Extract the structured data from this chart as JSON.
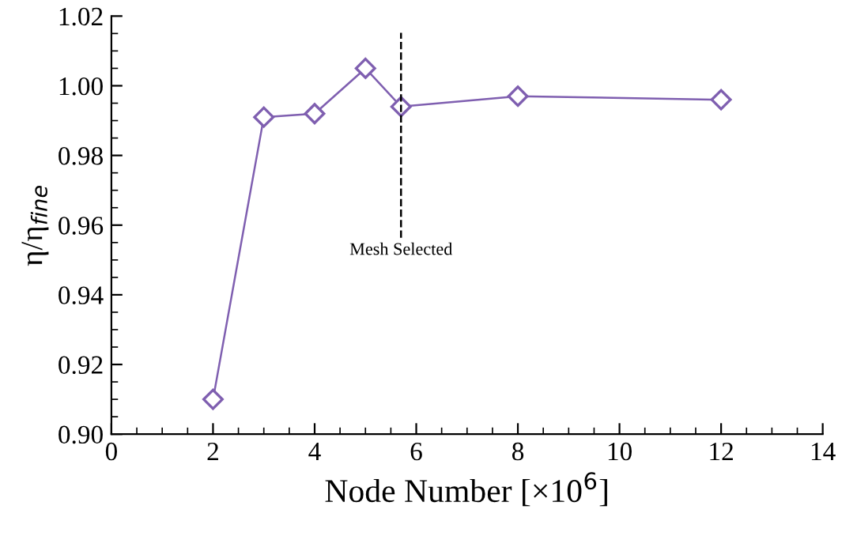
{
  "chart_data": {
    "type": "line",
    "xlabel": "Node Number [×10$^{6}$]",
    "ylabel": "η/η$_{fine}$",
    "x": [
      2,
      3,
      4,
      5,
      5.7,
      8,
      12
    ],
    "series": [
      {
        "color": "#7f5fb0",
        "values": [
          0.91,
          0.991,
          0.992,
          1.005,
          0.994,
          0.997,
          0.996
        ]
      }
    ],
    "marker": "diamond",
    "line_style": "solid",
    "grid": false,
    "legend": false,
    "xlim": [
      0,
      14
    ],
    "xticks": [
      0,
      2,
      4,
      6,
      8,
      10,
      12,
      14
    ],
    "ylim": [
      0.9,
      1.02
    ],
    "yticks": [
      {
        "value": 0.9,
        "label": "0.90"
      },
      {
        "value": 0.92,
        "label": "0.92"
      },
      {
        "value": 0.94,
        "label": "0.94"
      },
      {
        "value": 0.96,
        "label": "0.96"
      },
      {
        "value": 0.98,
        "label": "0.98"
      },
      {
        "value": 1.0,
        "label": "1.00"
      },
      {
        "value": 1.02,
        "label": "1.02"
      }
    ],
    "ref_lines": [
      {
        "axis": "x",
        "value": 5.7,
        "label": "Mesh Selected",
        "color": "#000000",
        "line_style": "dashed"
      }
    ]
  }
}
